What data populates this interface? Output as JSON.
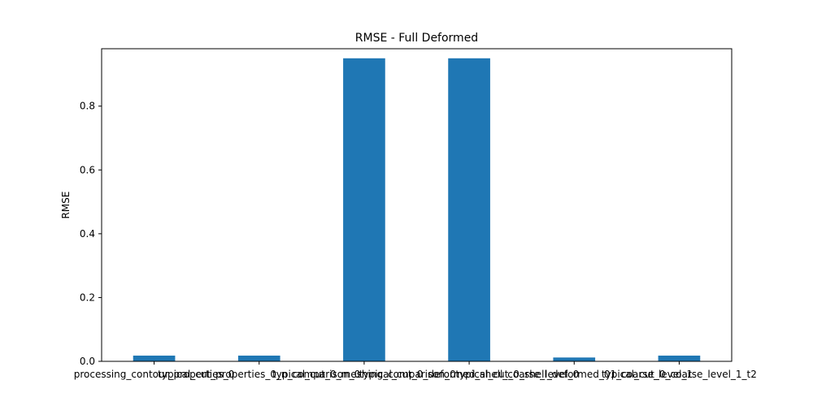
{
  "chart_data": {
    "type": "bar",
    "title": "RMSE - Full Deformed",
    "xlabel": "",
    "ylabel": "RMSE",
    "categories": [
      "processing_contour_properties_0",
      "typical_cut_properties_0_n_comparison_0",
      "typical_cut_0_meshing_comparison_0",
      "typical_cut_0_deformed_shell_coarse_level_0",
      "typical_cut_0_shell_deformed_01_coarse_level_1",
      "typical_cut_0_coarse_level_1_t2"
    ],
    "values": [
      0.018,
      0.018,
      0.95,
      0.95,
      0.012,
      0.018
    ],
    "ylim": [
      0,
      0.98
    ],
    "yticks": [
      0.0,
      0.2,
      0.4,
      0.6,
      0.8
    ],
    "ytick_labels": [
      "0.0",
      "0.2",
      "0.4",
      "0.6",
      "0.8"
    ],
    "grid": false,
    "legend": "none",
    "bar_color": "#1f77b4",
    "axis_color": "#000000",
    "background_color": "#ffffff"
  }
}
